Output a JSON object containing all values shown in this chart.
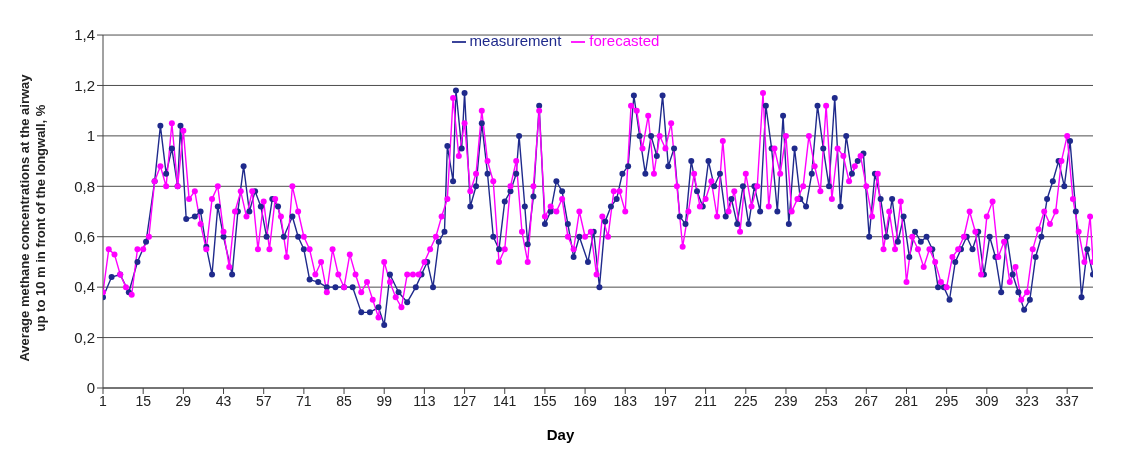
{
  "chart_data": {
    "type": "line",
    "xlabel": "Day",
    "ylabel": "Average methane concentrations at the airway up to 10 m in front of the longwall, %",
    "xlim": [
      1,
      346
    ],
    "xticks": [
      1,
      15,
      29,
      43,
      57,
      71,
      85,
      99,
      113,
      127,
      141,
      155,
      169,
      183,
      197,
      211,
      225,
      239,
      253,
      267,
      281,
      295,
      309,
      323,
      337
    ],
    "ylim": [
      0,
      1.4
    ],
    "yticks": [
      0,
      {
        "value": 0.2,
        "label": "0,2"
      },
      {
        "value": 0.4,
        "label": "0,4"
      },
      {
        "value": 0.6,
        "label": "0,6"
      },
      {
        "value": 0.8,
        "label": "0,8"
      },
      1,
      {
        "value": 1.2,
        "label": "1,2"
      },
      {
        "value": 1.4,
        "label": "1,4"
      }
    ],
    "grid": "y",
    "legend": "top",
    "marker": "circle",
    "line_style": "solid",
    "series": [
      {
        "name": "measurement",
        "color": "#1f2a8c",
        "x": [
          1,
          4,
          7,
          10,
          13,
          16,
          19,
          21,
          23,
          25,
          27,
          28,
          30,
          33,
          35,
          37,
          39,
          41,
          43,
          46,
          48,
          50,
          52,
          54,
          56,
          58,
          60,
          62,
          64,
          67,
          69,
          71,
          73,
          76,
          79,
          82,
          85,
          88,
          91,
          94,
          97,
          99,
          101,
          104,
          107,
          110,
          112,
          114,
          116,
          118,
          120,
          121,
          123,
          124,
          126,
          127,
          129,
          131,
          133,
          135,
          137,
          139,
          141,
          143,
          145,
          146,
          148,
          149,
          151,
          153,
          155,
          157,
          159,
          161,
          163,
          165,
          167,
          170,
          172,
          174,
          176,
          178,
          180,
          182,
          184,
          186,
          188,
          190,
          192,
          194,
          196,
          198,
          200,
          202,
          204,
          206,
          208,
          210,
          212,
          214,
          216,
          218,
          220,
          222,
          224,
          226,
          228,
          230,
          232,
          234,
          236,
          238,
          240,
          242,
          244,
          246,
          248,
          250,
          252,
          254,
          256,
          258,
          260,
          262,
          264,
          266,
          268,
          270,
          272,
          274,
          276,
          278,
          280,
          282,
          284,
          286,
          288,
          290,
          292,
          294,
          296,
          298,
          300,
          302,
          304,
          306,
          308,
          310,
          312,
          314,
          316,
          318,
          320,
          322,
          324,
          326,
          328,
          330,
          332,
          334,
          336,
          338,
          340,
          342,
          344,
          346
        ],
        "values": [
          0.36,
          0.44,
          0.45,
          0.38,
          0.5,
          0.58,
          0.82,
          1.04,
          0.85,
          0.95,
          0.8,
          1.04,
          0.67,
          0.68,
          0.7,
          0.56,
          0.45,
          0.72,
          0.6,
          0.45,
          0.7,
          0.88,
          0.7,
          0.78,
          0.72,
          0.6,
          0.75,
          0.72,
          0.6,
          0.68,
          0.6,
          0.55,
          0.43,
          0.42,
          0.4,
          0.4,
          0.4,
          0.4,
          0.3,
          0.3,
          0.32,
          0.25,
          0.45,
          0.38,
          0.34,
          0.4,
          0.45,
          0.5,
          0.4,
          0.58,
          0.62,
          0.96,
          0.82,
          1.18,
          0.95,
          1.17,
          0.72,
          0.8,
          1.05,
          0.85,
          0.6,
          0.55,
          0.74,
          0.78,
          0.85,
          1.0,
          0.72,
          0.57,
          0.76,
          1.12,
          0.65,
          0.7,
          0.82,
          0.78,
          0.65,
          0.52,
          0.6,
          0.5,
          0.62,
          0.4,
          0.66,
          0.72,
          0.75,
          0.85,
          0.88,
          1.16,
          1.0,
          0.85,
          1.0,
          0.92,
          1.16,
          0.88,
          0.95,
          0.68,
          0.65,
          0.9,
          0.78,
          0.72,
          0.9,
          0.8,
          0.85,
          0.68,
          0.75,
          0.65,
          0.8,
          0.65,
          0.8,
          0.7,
          1.12,
          0.95,
          0.7,
          1.08,
          0.65,
          0.95,
          0.75,
          0.72,
          0.85,
          1.12,
          0.95,
          0.8,
          1.15,
          0.72,
          1.0,
          0.85,
          0.9,
          0.93,
          0.6,
          0.85,
          0.75,
          0.6,
          0.75,
          0.58,
          0.68,
          0.52,
          0.62,
          0.58,
          0.6,
          0.55,
          0.4,
          0.4,
          0.35,
          0.5,
          0.55,
          0.6,
          0.55,
          0.62,
          0.45,
          0.6,
          0.52,
          0.38,
          0.6,
          0.45,
          0.38,
          0.31,
          0.35,
          0.52,
          0.6,
          0.75,
          0.82,
          0.9,
          0.8,
          0.98,
          0.7,
          0.36,
          0.55,
          0.45
        ]
      },
      {
        "name": "forecasted",
        "color": "#ff00ff",
        "x": [
          1,
          3,
          5,
          7,
          9,
          11,
          13,
          15,
          17,
          19,
          21,
          23,
          25,
          27,
          29,
          31,
          33,
          35,
          37,
          39,
          41,
          43,
          45,
          47,
          49,
          51,
          53,
          55,
          57,
          59,
          61,
          63,
          65,
          67,
          69,
          71,
          73,
          75,
          77,
          79,
          81,
          83,
          85,
          87,
          89,
          91,
          93,
          95,
          97,
          99,
          101,
          103,
          105,
          107,
          109,
          111,
          113,
          115,
          117,
          119,
          121,
          123,
          125,
          127,
          129,
          131,
          133,
          135,
          137,
          139,
          141,
          143,
          145,
          147,
          149,
          151,
          153,
          155,
          157,
          159,
          161,
          163,
          165,
          167,
          169,
          171,
          173,
          175,
          177,
          179,
          181,
          183,
          185,
          187,
          189,
          191,
          193,
          195,
          197,
          199,
          201,
          203,
          205,
          207,
          209,
          211,
          213,
          215,
          217,
          219,
          221,
          223,
          225,
          227,
          229,
          231,
          233,
          235,
          237,
          239,
          241,
          243,
          245,
          247,
          249,
          251,
          253,
          255,
          257,
          259,
          261,
          263,
          265,
          267,
          269,
          271,
          273,
          275,
          277,
          279,
          281,
          283,
          285,
          287,
          289,
          291,
          293,
          295,
          297,
          299,
          301,
          303,
          305,
          307,
          309,
          311,
          313,
          315,
          317,
          319,
          321,
          323,
          325,
          327,
          329,
          331,
          333,
          335,
          337,
          339,
          341,
          343,
          345,
          346
        ],
        "values": [
          0.38,
          0.55,
          0.53,
          0.45,
          0.4,
          0.37,
          0.55,
          0.55,
          0.6,
          0.82,
          0.88,
          0.8,
          1.05,
          0.8,
          1.02,
          0.75,
          0.78,
          0.65,
          0.55,
          0.75,
          0.8,
          0.62,
          0.48,
          0.7,
          0.78,
          0.68,
          0.78,
          0.55,
          0.74,
          0.55,
          0.75,
          0.68,
          0.52,
          0.8,
          0.7,
          0.6,
          0.55,
          0.45,
          0.5,
          0.38,
          0.55,
          0.45,
          0.4,
          0.53,
          0.45,
          0.38,
          0.42,
          0.35,
          0.28,
          0.5,
          0.42,
          0.36,
          0.32,
          0.45,
          0.45,
          0.45,
          0.5,
          0.55,
          0.6,
          0.68,
          0.75,
          1.15,
          0.92,
          1.05,
          0.78,
          0.85,
          1.1,
          0.9,
          0.82,
          0.5,
          0.55,
          0.8,
          0.9,
          0.62,
          0.5,
          0.8,
          1.1,
          0.68,
          0.72,
          0.7,
          0.75,
          0.6,
          0.55,
          0.7,
          0.6,
          0.62,
          0.45,
          0.68,
          0.6,
          0.78,
          0.78,
          0.7,
          1.12,
          1.1,
          0.95,
          1.08,
          0.85,
          1.0,
          0.95,
          1.05,
          0.8,
          0.56,
          0.7,
          0.85,
          0.72,
          0.75,
          0.82,
          0.68,
          0.98,
          0.7,
          0.78,
          0.62,
          0.85,
          0.72,
          0.8,
          1.17,
          0.72,
          0.95,
          0.85,
          1.0,
          0.7,
          0.75,
          0.8,
          1.0,
          0.88,
          0.78,
          1.12,
          0.75,
          0.95,
          0.92,
          0.82,
          0.88,
          0.92,
          0.8,
          0.68,
          0.85,
          0.55,
          0.7,
          0.55,
          0.74,
          0.42,
          0.6,
          0.55,
          0.48,
          0.55,
          0.5,
          0.42,
          0.4,
          0.52,
          0.55,
          0.6,
          0.7,
          0.62,
          0.45,
          0.68,
          0.74,
          0.52,
          0.58,
          0.42,
          0.48,
          0.35,
          0.38,
          0.55,
          0.63,
          0.7,
          0.65,
          0.7,
          0.9,
          1.0,
          0.75,
          0.62,
          0.5,
          0.68,
          0.5
        ]
      }
    ]
  }
}
